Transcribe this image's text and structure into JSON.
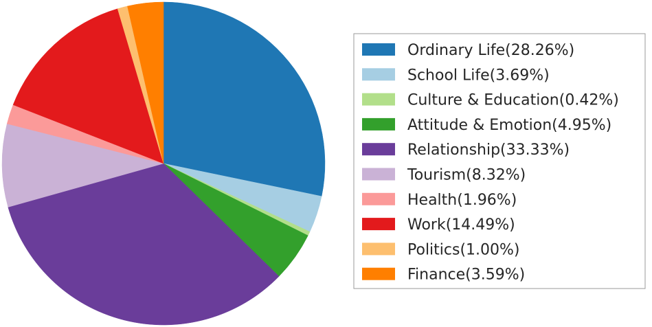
{
  "chart_data": {
    "type": "pie",
    "title": "",
    "start_angle_deg": 90,
    "direction": "clockwise",
    "legend_position": "right",
    "slices": [
      {
        "label": "Ordinary Life(28.26%)",
        "name": "Ordinary Life",
        "value": 28.26,
        "color": "#1f77b4"
      },
      {
        "label": "School Life(3.69%)",
        "name": "School Life",
        "value": 3.69,
        "color": "#a6cee3"
      },
      {
        "label": "Culture & Education(0.42%)",
        "name": "Culture & Education",
        "value": 0.42,
        "color": "#b2df8a"
      },
      {
        "label": "Attitude & Emotion(4.95%)",
        "name": "Attitude & Emotion",
        "value": 4.95,
        "color": "#33a02c"
      },
      {
        "label": "Relationship(33.33%)",
        "name": "Relationship",
        "value": 33.33,
        "color": "#6a3d9a"
      },
      {
        "label": "Tourism(8.32%)",
        "name": "Tourism",
        "value": 8.32,
        "color": "#cab2d6"
      },
      {
        "label": "Health(1.96%)",
        "name": "Health",
        "value": 1.96,
        "color": "#fb9a99"
      },
      {
        "label": "Work(14.49%)",
        "name": "Work",
        "value": 14.49,
        "color": "#e31a1c"
      },
      {
        "label": "Politics(1.00%)",
        "name": "Politics",
        "value": 1.0,
        "color": "#fdbf6f"
      },
      {
        "label": "Finance(3.59%)",
        "name": "Finance",
        "value": 3.59,
        "color": "#ff7f00"
      }
    ]
  }
}
